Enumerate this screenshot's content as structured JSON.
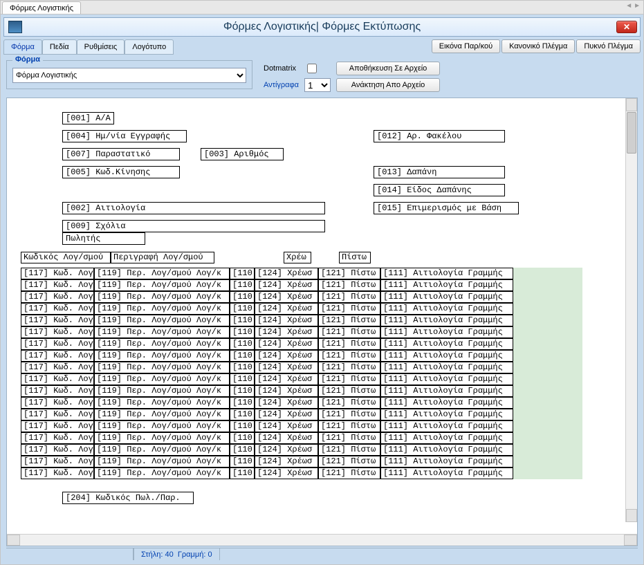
{
  "outer_tab": {
    "label": "Φόρμες Λογιστικής"
  },
  "colors": {
    "workspace_bg": "#c7dbef",
    "title_grad_from": "#f1f7fd",
    "title_grad_to": "#dbeafb",
    "accent_text": "#0040b0",
    "close_bg_from": "#ef5b4e",
    "close_bg_to": "#c1271a",
    "green_panel": "#d8ebd8"
  },
  "title": "Φόρμες Λογιστικής| Φόρμες Εκτύπωσης",
  "tabs": [
    {
      "label": "Φόρμα",
      "active": true
    },
    {
      "label": "Πεδία",
      "active": false
    },
    {
      "label": "Ρυθμίσεις",
      "active": false
    },
    {
      "label": "Λογότυπο",
      "active": false
    }
  ],
  "mode_buttons": [
    {
      "label": "Εικόνα Παρ/κού"
    },
    {
      "label": "Κανονικό Πλέγμα"
    },
    {
      "label": "Πυκνό Πλέγμα"
    }
  ],
  "form_group": {
    "legend": "Φόρμα",
    "select_value": "Φόρμα Λογιστικής"
  },
  "right_controls": {
    "dotmatrix_label": "Dotmatrix",
    "dotmatrix_checked": false,
    "copies_label": "Αντίγραφα",
    "copies_value": "1",
    "save_label": "Αποθήκευση Σε Αρχείο",
    "load_label": "Ανάκτηση Απο Αρχείο"
  },
  "design_fields": {
    "f001": "[001] Α/Α",
    "f004": "[004] Ημ/νία Εγγραφής",
    "f012": "[012] Αρ. Φακέλου",
    "f007": "[007] Παραστατικό",
    "f003": "[003] Αριθμός",
    "f005": "[005] Κωδ.Κίνησης",
    "f013": "[013] Δαπάνη",
    "f014": "[014] Είδος Δαπάνης",
    "f002": "[002] Αιτιολογία",
    "f015": "[015] Επιμερισμός με Βάση",
    "f009": "[009] Σχόλια",
    "seller": "Πωλητής",
    "footer204": "[204] Κωδικός Πωλ./Παρ."
  },
  "grid_headers": {
    "h1": "Κωδικός Λογ/σμού",
    "h2": "Περιγραφή Λογ/σμού",
    "h3": "Χρέω",
    "h4": "Πίστω"
  },
  "grid_cell": {
    "c1": "[117] Κωδ. Λογ",
    "c2": "[119] Περ. Λογ/σμού Λογ/κ",
    "c3": "[110",
    "c4": "[124] Χρέωσ",
    "c5": "[121] Πίστω",
    "c6": "[111] Αιτιολογία Γραμμής"
  },
  "grid_row_count": 18,
  "status": {
    "col_label": "Στήλη:",
    "col_value": "40",
    "row_label": "Γραμμή:",
    "row_value": "0"
  },
  "widths": {
    "c1": 106,
    "c2": 196,
    "c3": 36,
    "c4": 92,
    "c5": 90,
    "c6": 192,
    "h1_w": 130,
    "h2_w": 150,
    "h2_ml": 0,
    "h3_ml": 100,
    "h3_w": 40,
    "h4_ml": 40,
    "h4_w": 46
  }
}
